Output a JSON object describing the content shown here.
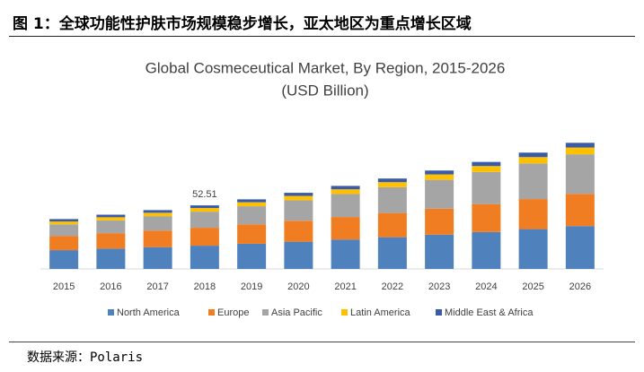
{
  "header": {
    "title": "图 1：全球功能性护肤市场规模稳步增长，亚太地区为重点增长区域"
  },
  "source": "数据来源：Polaris",
  "chart_data": {
    "type": "stacked_bar",
    "title": "Global Cosmeceutical Market, By Region, 2015-2026",
    "subtitle": "(USD Billion)",
    "categories": [
      "2015",
      "2016",
      "2017",
      "2018",
      "2019",
      "2020",
      "2021",
      "2022",
      "2023",
      "2024",
      "2025",
      "2026"
    ],
    "series": [
      {
        "name": "North America",
        "color": "#4f81bd",
        "values": [
          15.5,
          16.8,
          18.0,
          19.2,
          20.8,
          22.5,
          24.3,
          26.2,
          28.3,
          30.5,
          32.9,
          35.4
        ]
      },
      {
        "name": "Europe",
        "color": "#f07d22",
        "values": [
          11.8,
          12.7,
          13.7,
          14.8,
          16.0,
          17.3,
          18.6,
          20.0,
          21.5,
          23.1,
          24.8,
          26.6
        ]
      },
      {
        "name": "Asia Pacific",
        "color": "#a5a5a5",
        "values": [
          9.5,
          10.6,
          11.9,
          13.3,
          15.0,
          16.9,
          19.0,
          21.3,
          23.8,
          26.5,
          29.5,
          32.7
        ]
      },
      {
        "name": "Latin America",
        "color": "#ffc000",
        "values": [
          2.4,
          2.6,
          2.8,
          3.0,
          3.3,
          3.6,
          3.9,
          4.2,
          4.5,
          4.9,
          5.2,
          5.6
        ]
      },
      {
        "name": "Middle East & Africa",
        "color": "#3a5ca8",
        "values": [
          2.0,
          2.1,
          2.2,
          2.21,
          2.4,
          2.6,
          2.8,
          3.0,
          3.2,
          3.4,
          3.7,
          3.9
        ]
      }
    ],
    "total_labels": [
      null,
      null,
      null,
      52.51,
      null,
      null,
      null,
      null,
      null,
      null,
      null,
      null
    ],
    "ylim": [
      0,
      140
    ],
    "grid": false,
    "legend": "bottom"
  }
}
